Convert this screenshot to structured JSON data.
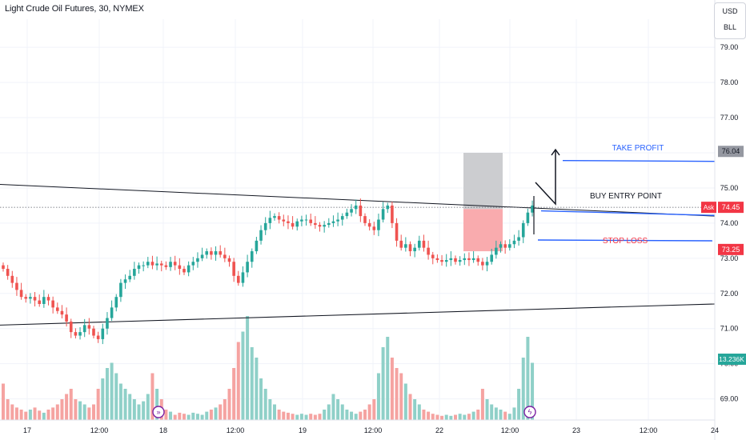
{
  "header": {
    "title": "Light Crude Oil Futures, 30, NYMEX",
    "currency": "USD",
    "unit": "BLL"
  },
  "colors": {
    "up": "#26a69a",
    "down": "#ef5350",
    "vol_up": "#8fd0c8",
    "vol_down": "#f5a3a1",
    "blue_line": "#2962ff",
    "take_profit_text": "#2962ff",
    "stop_loss_text": "#f23645",
    "grid": "#f0f3fa",
    "target_zone": "#c9cacd",
    "stop_zone": "#f9a6aa"
  },
  "chart_data": {
    "type": "candlestick",
    "title": "Light Crude Oil Futures, 30, NYMEX",
    "timeframe": "30",
    "exchange": "NYMEX",
    "y_range": [
      68.4,
      79.8
    ],
    "y_ticks": [
      "79.00",
      "78.00",
      "77.00",
      "76.00",
      "75.00",
      "74.00",
      "73.00",
      "72.00",
      "71.00",
      "70.00",
      "69.00"
    ],
    "x_ticks": [
      "17",
      "12:00",
      "18",
      "12:00",
      "19",
      "12:00",
      "22",
      "12:00",
      "23",
      "12:00",
      "24"
    ],
    "grid": true,
    "price_labels": {
      "ask_tag": "Ask",
      "ask": "74.45",
      "take_profit": "76.04",
      "stop_loss": "73.25",
      "volume": "13.236K"
    },
    "annotations": {
      "take_profit": "TAKE PROFIT",
      "buy_entry": "BUY ENTRY POINT",
      "stop_loss": "STOP LOSS"
    },
    "levels": {
      "take_profit_line": 75.78,
      "entry_line_start": 74.35,
      "entry_line_end": 74.22,
      "stop_loss_line": 73.52,
      "dotted_price": 74.45
    },
    "zones": {
      "target": [
        74.4,
        76.0
      ],
      "stop": [
        73.2,
        74.4
      ]
    },
    "trendlines": {
      "upper": [
        [
          75.1
        ],
        [
          74.2
        ]
      ],
      "lower": [
        [
          71.1
        ],
        [
          71.7
        ]
      ]
    },
    "close_path": [
      72.7,
      72.5,
      72.3,
      72.1,
      71.9,
      71.85,
      71.9,
      71.8,
      71.7,
      71.9,
      71.8,
      71.6,
      71.5,
      71.4,
      71.2,
      70.9,
      70.8,
      70.9,
      71.1,
      71.0,
      70.8,
      70.7,
      71.0,
      71.3,
      71.6,
      71.9,
      72.3,
      72.4,
      72.5,
      72.7,
      72.8,
      72.8,
      72.9,
      72.8,
      72.85,
      72.8,
      72.75,
      72.9,
      72.8,
      72.7,
      72.6,
      72.8,
      72.9,
      73.0,
      73.1,
      73.2,
      73.1,
      73.2,
      73.1,
      73.0,
      72.9,
      72.5,
      72.3,
      72.6,
      72.9,
      73.2,
      73.5,
      73.8,
      74.0,
      74.15,
      74.2,
      74.1,
      74.05,
      74.0,
      73.9,
      74.05,
      74.1,
      74.1,
      74.0,
      73.95,
      73.9,
      73.95,
      74.0,
      74.05,
      74.1,
      74.2,
      74.3,
      74.4,
      74.5,
      74.2,
      74.0,
      73.9,
      73.8,
      74.1,
      74.4,
      74.5,
      74.0,
      73.5,
      73.3,
      73.4,
      73.2,
      73.3,
      73.5,
      73.3,
      73.1,
      73.0,
      72.95,
      72.9,
      72.95,
      73.0,
      72.9,
      72.95,
      73.0,
      72.95,
      73.0,
      72.9,
      72.8,
      72.9,
      73.1,
      73.3,
      73.4,
      73.3,
      73.4,
      73.5,
      73.6,
      74.0,
      74.3,
      74.5
    ],
    "volume_profile": [
      0.35,
      0.2,
      0.15,
      0.12,
      0.1,
      0.08,
      0.1,
      0.12,
      0.09,
      0.07,
      0.1,
      0.12,
      0.15,
      0.2,
      0.25,
      0.3,
      0.2,
      0.18,
      0.15,
      0.12,
      0.15,
      0.3,
      0.4,
      0.5,
      0.55,
      0.45,
      0.35,
      0.3,
      0.25,
      0.2,
      0.15,
      0.18,
      0.25,
      0.45,
      0.3,
      0.2,
      0.1,
      0.08,
      0.05,
      0.07,
      0.06,
      0.05,
      0.07,
      0.06,
      0.05,
      0.08,
      0.1,
      0.12,
      0.15,
      0.2,
      0.3,
      0.5,
      0.75,
      0.85,
      1.0,
      0.7,
      0.6,
      0.4,
      0.3,
      0.2,
      0.15,
      0.1,
      0.08,
      0.07,
      0.06,
      0.05,
      0.06,
      0.05,
      0.06,
      0.05,
      0.06,
      0.1,
      0.15,
      0.25,
      0.2,
      0.15,
      0.1,
      0.08,
      0.06,
      0.08,
      0.1,
      0.15,
      0.2,
      0.45,
      0.7,
      0.8,
      0.6,
      0.5,
      0.45,
      0.35,
      0.25,
      0.2,
      0.15,
      0.1,
      0.08,
      0.06,
      0.05,
      0.04,
      0.05,
      0.04,
      0.05,
      0.06,
      0.05,
      0.06,
      0.08,
      0.1,
      0.3,
      0.2,
      0.15,
      0.12,
      0.1,
      0.08,
      0.06,
      0.12,
      0.3,
      0.6,
      0.8,
      0.55
    ]
  }
}
